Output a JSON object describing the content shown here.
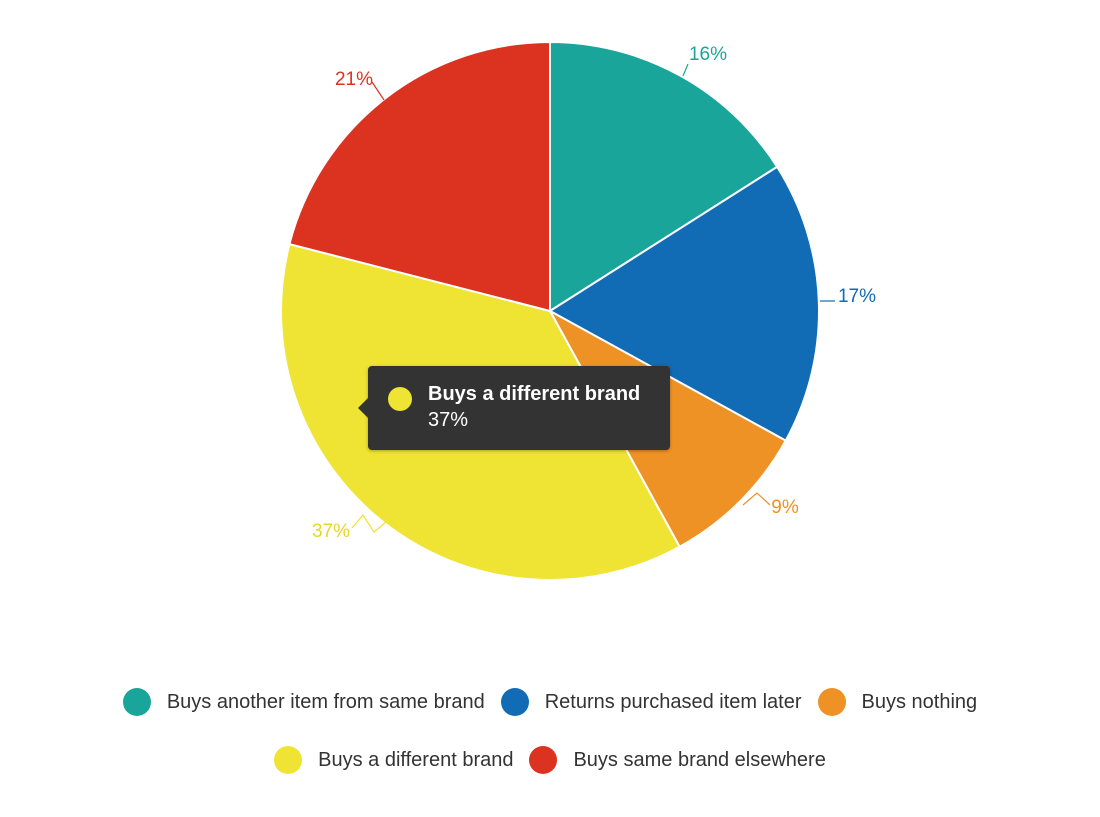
{
  "chart_data": {
    "type": "pie",
    "title": "",
    "categories": [
      "Buys another item from same brand",
      "Returns purchased item later",
      "Buys nothing",
      "Buys a different brand",
      "Buys same brand elsewhere"
    ],
    "values": [
      16,
      17,
      9,
      37,
      21
    ],
    "value_labels": [
      "16%",
      "17%",
      "9%",
      "37%",
      "21%"
    ],
    "colors": [
      "#1aa59b",
      "#116bb5",
      "#ee9226",
      "#efe333",
      "#db3320"
    ],
    "start_angle": "top (12 o'clock), clockwise",
    "legend_position": "bottom",
    "grid": false
  },
  "tooltip": {
    "title": "Buys a different brand",
    "value": "37%",
    "color": "#efe333"
  },
  "legend": {
    "rows": [
      [
        {
          "label": "Buys another item from same brand",
          "color": "#1aa59b"
        },
        {
          "label": "Returns purchased item later",
          "color": "#116bb5"
        },
        {
          "label": "Buys nothing",
          "color": "#ee9226"
        }
      ],
      [
        {
          "label": "Buys a different brand",
          "color": "#efe333"
        },
        {
          "label": "Buys same brand elsewhere",
          "color": "#db3320"
        }
      ]
    ]
  }
}
